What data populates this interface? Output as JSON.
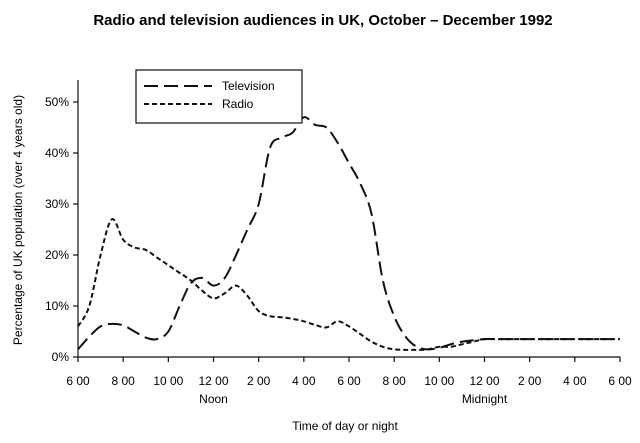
{
  "chart_data": {
    "type": "line",
    "title": "Radio and television audiences in UK, October – December 1992",
    "xlabel": "Time of day or night",
    "ylabel": "Percentage of UK population (over 4 years old)",
    "x_ticks": [
      "6 00",
      "8 00",
      "10 00",
      "12 00",
      "2 00",
      "4 00",
      "6 00",
      "8 00",
      "10 00",
      "12 00",
      "2 00",
      "4 00",
      "6 00"
    ],
    "x_tick_sublabels": [
      {
        "index": 3,
        "text": "Noon"
      },
      {
        "index": 9,
        "text": "Midnight"
      }
    ],
    "y_ticks": [
      "0%",
      "10%",
      "20%",
      "30%",
      "40%",
      "50%"
    ],
    "ylim": [
      0,
      50
    ],
    "xlim": [
      0,
      24
    ],
    "legend": {
      "position": "top-left"
    },
    "series": [
      {
        "name": "Television",
        "style": "long-dash",
        "x": [
          0,
          0.5,
          1,
          1.5,
          2,
          2.5,
          3,
          3.5,
          4,
          4.5,
          5,
          5.5,
          6,
          6.5,
          7,
          7.5,
          8,
          8.5,
          9,
          9.5,
          10,
          10.5,
          11,
          11.5,
          12,
          12.5,
          13,
          13.5,
          14,
          14.5,
          15,
          15.5,
          16,
          16.5,
          17,
          17.5,
          18,
          18.5,
          19,
          19.5,
          20,
          20.5,
          21,
          21.5,
          22,
          22.5,
          23,
          23.5,
          24
        ],
        "values": [
          1.5,
          4,
          6,
          6.5,
          6.2,
          5,
          3.8,
          3.5,
          5,
          10,
          14.5,
          15.5,
          14,
          15.5,
          20,
          25,
          30,
          41,
          43,
          44,
          47,
          45.5,
          45,
          42,
          38,
          34,
          28,
          15,
          8,
          4,
          2,
          1.5,
          1.8,
          2.5,
          3,
          3.3,
          3.5,
          3.5,
          3.5,
          3.5,
          3.5,
          3.5,
          3.5,
          3.5,
          3.5,
          3.5,
          3.5,
          3.5,
          3.5
        ]
      },
      {
        "name": "Radio",
        "style": "short-dash",
        "x": [
          0,
          0.5,
          1,
          1.5,
          2,
          2.5,
          3,
          3.5,
          4,
          4.5,
          5,
          5.5,
          6,
          6.5,
          7,
          7.5,
          8,
          8.5,
          9,
          9.5,
          10,
          10.5,
          11,
          11.5,
          12,
          12.5,
          13,
          13.5,
          14,
          14.5,
          15,
          15.5,
          16,
          16.5,
          17,
          17.5,
          18,
          18.5,
          19,
          19.5,
          20,
          20.5,
          21,
          21.5,
          22,
          22.5,
          23,
          23.5,
          24
        ],
        "values": [
          6,
          10,
          20,
          27,
          23,
          21.5,
          21,
          19.5,
          18,
          16.5,
          15,
          13,
          11.5,
          12.5,
          14,
          12,
          9,
          8,
          7.8,
          7.5,
          7,
          6.3,
          5.8,
          7,
          6,
          4.5,
          3,
          2,
          1.5,
          1.4,
          1.4,
          1.5,
          2,
          2,
          2.5,
          3,
          3.5,
          3.5,
          3.5,
          3.5,
          3.5,
          3.5,
          3.5,
          3.5,
          3.5,
          3.5,
          3.5,
          3.5,
          3.5
        ]
      }
    ]
  }
}
